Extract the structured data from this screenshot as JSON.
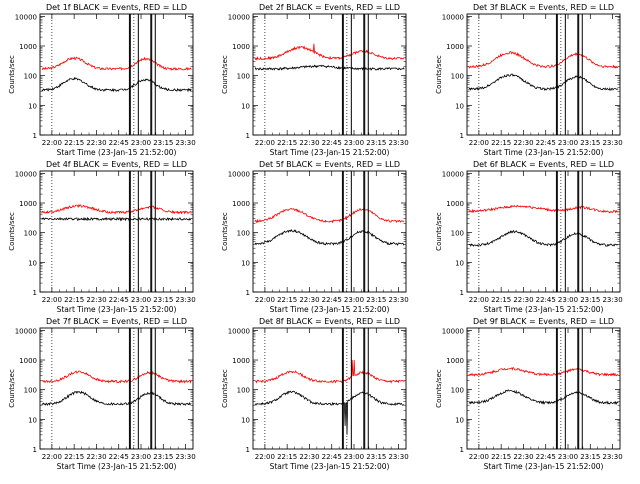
{
  "chart_data": [
    {
      "type": "line",
      "title": "Det 1f BLACK = Events, RED = LLD",
      "xlabel": "Start Time (23-Jan-15 21:52:00)",
      "ylabel": "Counts/sec",
      "xticks": [
        "22:00",
        "22:15",
        "22:30",
        "22:45",
        "23:00",
        "23:15",
        "23:30"
      ],
      "yticks": [
        "1",
        "10",
        "100",
        "1000",
        "10000"
      ],
      "yscale": "log",
      "ylim": [
        1,
        12000
      ],
      "xlim": [
        21.8667,
        23.5833
      ],
      "grid": "none",
      "series": [
        {
          "color": "#ff0000",
          "baseline": 170,
          "bumps": [
            {
              "t": 22.25,
              "amp": 220,
              "w": 0.15
            },
            {
              "t": 23.05,
              "amp": 200,
              "w": 0.13
            }
          ],
          "spikes": []
        },
        {
          "color": "#000000",
          "baseline": 33,
          "bumps": [
            {
              "t": 22.25,
              "amp": 45,
              "w": 0.15
            },
            {
              "t": 23.05,
              "amp": 40,
              "w": 0.13
            }
          ],
          "spikes": []
        }
      ],
      "vlines_dotted": [
        22.0,
        22.92
      ],
      "vlines_solid": [
        22.87,
        22.88,
        22.97,
        23.11,
        23.12,
        23.16
      ]
    },
    {
      "type": "line",
      "title": "Det 2f BLACK = Events, RED = LLD",
      "xlabel": "Start Time (23-Jan-15 21:52:00)",
      "ylabel": "Counts/sec",
      "xticks": [
        "22:00",
        "22:15",
        "22:30",
        "22:45",
        "23:00",
        "23:15",
        "23:30"
      ],
      "yticks": [
        "1",
        "10",
        "100",
        "1000",
        "10000"
      ],
      "yscale": "log",
      "ylim": [
        1,
        12000
      ],
      "xlim": [
        21.8667,
        23.5833
      ],
      "grid": "none",
      "series": [
        {
          "color": "#ff0000",
          "baseline": 380,
          "bumps": [
            {
              "t": 22.4,
              "amp": 520,
              "w": 0.18
            },
            {
              "t": 23.1,
              "amp": 300,
              "w": 0.15
            }
          ],
          "spikes": [
            {
              "t": 22.55,
              "v": 1200
            }
          ]
        },
        {
          "color": "#000000",
          "baseline": 170,
          "bumps": [
            {
              "t": 22.6,
              "amp": 40,
              "w": 0.25
            }
          ],
          "spikes": []
        }
      ],
      "vlines_dotted": [
        22.0,
        22.92
      ],
      "vlines_solid": [
        22.87,
        22.88,
        22.97,
        23.11,
        23.12,
        23.16
      ]
    },
    {
      "type": "line",
      "title": "Det 3f BLACK = Events, RED = LLD",
      "xlabel": "Start Time (23-Jan-15 21:52:00)",
      "ylabel": "Counts/sec",
      "xticks": [
        "22:00",
        "22:15",
        "22:30",
        "22:45",
        "23:00",
        "23:15",
        "23:30"
      ],
      "yticks": [
        "1",
        "10",
        "100",
        "1000",
        "10000"
      ],
      "yscale": "log",
      "ylim": [
        1,
        12000
      ],
      "xlim": [
        21.8667,
        23.5833
      ],
      "grid": "none",
      "series": [
        {
          "color": "#ff0000",
          "baseline": 200,
          "bumps": [
            {
              "t": 22.35,
              "amp": 400,
              "w": 0.18
            },
            {
              "t": 23.1,
              "amp": 330,
              "w": 0.15
            }
          ],
          "spikes": []
        },
        {
          "color": "#000000",
          "baseline": 35,
          "bumps": [
            {
              "t": 22.35,
              "amp": 70,
              "w": 0.18
            },
            {
              "t": 23.1,
              "amp": 55,
              "w": 0.15
            }
          ],
          "spikes": []
        }
      ],
      "vlines_dotted": [
        22.0,
        22.92
      ],
      "vlines_solid": [
        22.87,
        22.88,
        22.97,
        23.11,
        23.12,
        23.16
      ]
    },
    {
      "type": "line",
      "title": "Det 4f BLACK = Events, RED = LLD",
      "xlabel": "Start Time (23-Jan-15 21:52:00)",
      "ylabel": "Counts/sec",
      "xticks": [
        "22:00",
        "22:15",
        "22:30",
        "22:45",
        "23:00",
        "23:15",
        "23:30"
      ],
      "yticks": [
        "1",
        "10",
        "100",
        "1000",
        "10000"
      ],
      "yscale": "log",
      "ylim": [
        1,
        12000
      ],
      "xlim": [
        21.8667,
        23.5833
      ],
      "grid": "none",
      "series": [
        {
          "color": "#ff0000",
          "baseline": 480,
          "bumps": [
            {
              "t": 22.3,
              "amp": 320,
              "w": 0.2
            },
            {
              "t": 23.1,
              "amp": 260,
              "w": 0.15
            }
          ],
          "spikes": []
        },
        {
          "color": "#000000",
          "baseline": 290,
          "bumps": [],
          "spikes": []
        }
      ],
      "vlines_dotted": [
        22.0,
        22.92
      ],
      "vlines_solid": [
        22.87,
        22.88,
        22.97,
        23.11,
        23.12,
        23.16
      ]
    },
    {
      "type": "line",
      "title": "Det 5f BLACK = Events, RED = LLD",
      "xlabel": "Start Time (23-Jan-15 21:52:00)",
      "ylabel": "Counts/sec",
      "xticks": [
        "22:00",
        "22:15",
        "22:30",
        "22:45",
        "23:00",
        "23:15",
        "23:30"
      ],
      "yticks": [
        "1",
        "10",
        "100",
        "1000",
        "10000"
      ],
      "yscale": "log",
      "ylim": [
        1,
        12000
      ],
      "xlim": [
        21.8667,
        23.5833
      ],
      "grid": "none",
      "series": [
        {
          "color": "#ff0000",
          "baseline": 240,
          "bumps": [
            {
              "t": 22.3,
              "amp": 380,
              "w": 0.18
            },
            {
              "t": 23.1,
              "amp": 380,
              "w": 0.15
            }
          ],
          "spikes": []
        },
        {
          "color": "#000000",
          "baseline": 42,
          "bumps": [
            {
              "t": 22.3,
              "amp": 75,
              "w": 0.18
            },
            {
              "t": 23.1,
              "amp": 70,
              "w": 0.15
            }
          ],
          "spikes": []
        }
      ],
      "vlines_dotted": [
        22.0,
        22.92
      ],
      "vlines_solid": [
        22.87,
        22.88,
        22.97,
        23.11,
        23.12,
        23.16
      ]
    },
    {
      "type": "line",
      "title": "Det 6f BLACK = Events, RED = LLD",
      "xlabel": "Start Time (23-Jan-15 21:52:00)",
      "ylabel": "Counts/sec",
      "xticks": [
        "22:00",
        "22:15",
        "22:30",
        "22:45",
        "23:00",
        "23:15",
        "23:30"
      ],
      "yticks": [
        "1",
        "10",
        "100",
        "1000",
        "10000"
      ],
      "yscale": "log",
      "ylim": [
        1,
        12000
      ],
      "xlim": [
        21.8667,
        23.5833
      ],
      "grid": "none",
      "series": [
        {
          "color": "#ff0000",
          "baseline": 520,
          "bumps": [
            {
              "t": 22.45,
              "amp": 260,
              "w": 0.3
            },
            {
              "t": 23.15,
              "amp": 200,
              "w": 0.15
            }
          ],
          "spikes": []
        },
        {
          "color": "#000000",
          "baseline": 38,
          "bumps": [
            {
              "t": 22.4,
              "amp": 70,
              "w": 0.18
            },
            {
              "t": 23.1,
              "amp": 55,
              "w": 0.15
            }
          ],
          "spikes": []
        }
      ],
      "vlines_dotted": [
        22.0,
        22.92
      ],
      "vlines_solid": [
        22.87,
        22.88,
        22.97,
        23.11,
        23.12,
        23.16
      ]
    },
    {
      "type": "line",
      "title": "Det 7f BLACK = Events, RED = LLD",
      "xlabel": "Start Time (23-Jan-15 21:52:00)",
      "ylabel": "Counts/sec",
      "xticks": [
        "22:00",
        "22:15",
        "22:30",
        "22:45",
        "23:00",
        "23:15",
        "23:30"
      ],
      "yticks": [
        "1",
        "10",
        "100",
        "1000",
        "10000"
      ],
      "yscale": "log",
      "ylim": [
        1,
        12000
      ],
      "xlim": [
        21.8667,
        23.5833
      ],
      "grid": "none",
      "series": [
        {
          "color": "#ff0000",
          "baseline": 190,
          "bumps": [
            {
              "t": 22.3,
              "amp": 210,
              "w": 0.15
            },
            {
              "t": 23.1,
              "amp": 190,
              "w": 0.13
            }
          ],
          "spikes": []
        },
        {
          "color": "#000000",
          "baseline": 33,
          "bumps": [
            {
              "t": 22.3,
              "amp": 50,
              "w": 0.15
            },
            {
              "t": 23.1,
              "amp": 45,
              "w": 0.13
            }
          ],
          "spikes": []
        }
      ],
      "vlines_dotted": [
        22.0,
        22.92
      ],
      "vlines_solid": [
        22.87,
        22.88,
        22.97,
        23.11,
        23.12,
        23.16
      ]
    },
    {
      "type": "line",
      "title": "Det 8f BLACK = Events, RED = LLD",
      "xlabel": "Start Time (23-Jan-15 21:52:00)",
      "ylabel": "Counts/sec",
      "xticks": [
        "22:00",
        "22:15",
        "22:30",
        "22:45",
        "23:00",
        "23:15",
        "23:30"
      ],
      "yticks": [
        "1",
        "10",
        "100",
        "1000",
        "10000"
      ],
      "yscale": "log",
      "ylim": [
        1,
        12000
      ],
      "xlim": [
        21.8667,
        23.5833
      ],
      "grid": "none",
      "series": [
        {
          "color": "#ff0000",
          "baseline": 190,
          "bumps": [
            {
              "t": 22.3,
              "amp": 220,
              "w": 0.15
            },
            {
              "t": 23.1,
              "amp": 190,
              "w": 0.13
            }
          ],
          "spikes": [
            {
              "t": 22.98,
              "v": 1000
            },
            {
              "t": 23.0,
              "v": 1000
            }
          ]
        },
        {
          "color": "#000000",
          "baseline": 33,
          "bumps": [
            {
              "t": 22.3,
              "amp": 50,
              "w": 0.15
            },
            {
              "t": 23.1,
              "amp": 45,
              "w": 0.13
            }
          ],
          "spikes": [
            {
              "t": 22.9,
              "v": 6
            },
            {
              "t": 22.92,
              "v": 3
            }
          ]
        }
      ],
      "vlines_dotted": [
        22.0,
        22.92
      ],
      "vlines_solid": [
        22.87,
        22.88,
        22.97,
        23.11,
        23.12,
        23.16
      ]
    },
    {
      "type": "line",
      "title": "Det 9f BLACK = Events, RED = LLD",
      "xlabel": "Start Time (23-Jan-15 21:52:00)",
      "ylabel": "Counts/sec",
      "xticks": [
        "22:00",
        "22:15",
        "22:30",
        "22:45",
        "23:00",
        "23:15",
        "23:30"
      ],
      "yticks": [
        "1",
        "10",
        "100",
        "1000",
        "10000"
      ],
      "yscale": "log",
      "ylim": [
        1,
        12000
      ],
      "xlim": [
        21.8667,
        23.5833
      ],
      "grid": "none",
      "series": [
        {
          "color": "#ff0000",
          "baseline": 320,
          "bumps": [
            {
              "t": 22.35,
              "amp": 200,
              "w": 0.2
            },
            {
              "t": 23.1,
              "amp": 160,
              "w": 0.15
            }
          ],
          "spikes": []
        },
        {
          "color": "#000000",
          "baseline": 36,
          "bumps": [
            {
              "t": 22.35,
              "amp": 55,
              "w": 0.18
            },
            {
              "t": 23.1,
              "amp": 45,
              "w": 0.15
            }
          ],
          "spikes": []
        }
      ],
      "vlines_dotted": [
        22.0,
        22.92
      ],
      "vlines_solid": [
        22.87,
        22.88,
        22.97,
        23.11,
        23.12,
        23.16
      ]
    }
  ]
}
